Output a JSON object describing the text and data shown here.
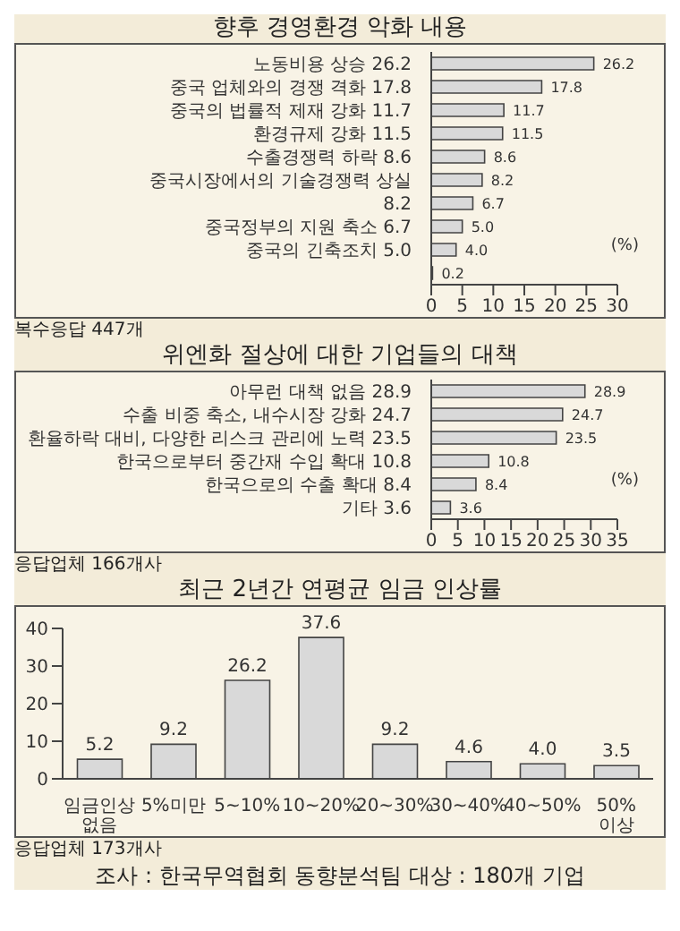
{
  "chart_data": [
    {
      "type": "bar",
      "orientation": "horizontal",
      "title": "향후 경영환경 악화 내용",
      "categories": [
        "노동비용 상승 26.2",
        "중국 업체와의 경쟁 격화 17.8",
        "중국의 법률적 제재 강화 11.7",
        "환경규제 강화 11.5",
        "수출경쟁력 하락 8.6",
        "중국시장에서의 기술경쟁력 상실",
        "8.2",
        "중국정부의 지원 축소 6.7",
        "중국의 긴축조치 5.0",
        null
      ],
      "values": [
        26.2,
        17.8,
        11.7,
        11.5,
        8.6,
        8.2,
        6.7,
        5.0,
        4.0,
        0.2
      ],
      "color": "#d9d9d9",
      "xlim": [
        0,
        30
      ],
      "xticks": [
        0,
        5,
        10,
        15,
        20,
        25,
        30
      ],
      "xlabel": "(%)",
      "value_labels": [
        "26.2",
        "17.8",
        "11.7",
        "11.5",
        "8.6",
        "8.2",
        "6.7",
        "5.0",
        "4.0",
        "0.2"
      ],
      "annotations": [
        "복수응답 447개"
      ]
    },
    {
      "type": "bar",
      "orientation": "horizontal",
      "title": "위엔화 절상에 대한 기업들의 대책",
      "categories": [
        "아무런 대책 없음 28.9",
        "수출 비중 축소, 내수시장 강화 24.7",
        "환율하락 대비, 다양한 리스크 관리에 노력 23.5",
        "한국으로부터 중간재 수입 확대 10.8",
        "한국으로의 수출 확대 8.4",
        "기타 3.6"
      ],
      "values": [
        28.9,
        24.7,
        23.5,
        10.8,
        8.4,
        3.6
      ],
      "color": "#d9d9d9",
      "xlim": [
        0,
        35
      ],
      "xticks": [
        0,
        5,
        10,
        15,
        20,
        25,
        30,
        35
      ],
      "xlabel": "(%)",
      "data_labels": true,
      "annotations": [
        "응답업체 166개사"
      ]
    },
    {
      "type": "bar",
      "title": "최근 2년간 연평균 임금 인상률",
      "categories": [
        "임금인상 없음",
        "5%미만",
        "5~10%",
        "10~20%",
        "20~30%",
        "30~40%",
        "40~50%",
        "50% 이상"
      ],
      "values": [
        5.2,
        9.2,
        26.2,
        37.6,
        9.2,
        4.6,
        4.0,
        3.5
      ],
      "color": "#d9d9d9",
      "ylim": [
        0,
        40
      ],
      "yticks": [
        0,
        10,
        20,
        30,
        40
      ],
      "value_labels": [
        "5.2",
        "9.2",
        "26.2",
        "37.6",
        "9.2",
        "4.6",
        "4.0",
        "3.5"
      ],
      "annotations": [
        "응답업체 173개사",
        "조사 : 한국무역협회 동향분석팀   대상 : 180개 기업"
      ]
    }
  ]
}
